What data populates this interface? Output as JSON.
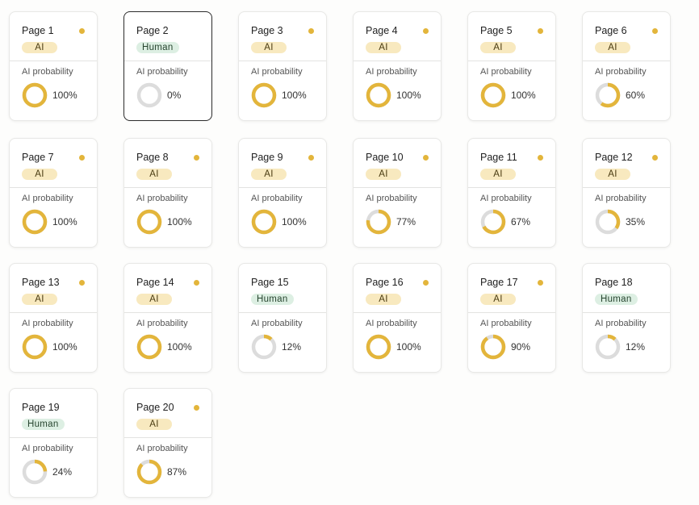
{
  "probability_label": "AI probability",
  "colors": {
    "ai_accent": "#e3b53b",
    "track": "#dcdcdc",
    "ai_badge_bg": "#f8e9bf",
    "human_badge_bg": "#ddefe3"
  },
  "pages": [
    {
      "label": "Page 1",
      "badge": "AI",
      "type": "ai",
      "probability": 100,
      "probability_text": "100%",
      "selected": false
    },
    {
      "label": "Page 2",
      "badge": "Human",
      "type": "human",
      "probability": 0,
      "probability_text": "0%",
      "selected": true
    },
    {
      "label": "Page 3",
      "badge": "AI",
      "type": "ai",
      "probability": 100,
      "probability_text": "100%",
      "selected": false
    },
    {
      "label": "Page 4",
      "badge": "AI",
      "type": "ai",
      "probability": 100,
      "probability_text": "100%",
      "selected": false
    },
    {
      "label": "Page 5",
      "badge": "AI",
      "type": "ai",
      "probability": 100,
      "probability_text": "100%",
      "selected": false
    },
    {
      "label": "Page 6",
      "badge": "AI",
      "type": "ai",
      "probability": 60,
      "probability_text": "60%",
      "selected": false
    },
    {
      "label": "Page 7",
      "badge": "AI",
      "type": "ai",
      "probability": 100,
      "probability_text": "100%",
      "selected": false
    },
    {
      "label": "Page 8",
      "badge": "AI",
      "type": "ai",
      "probability": 100,
      "probability_text": "100%",
      "selected": false
    },
    {
      "label": "Page 9",
      "badge": "AI",
      "type": "ai",
      "probability": 100,
      "probability_text": "100%",
      "selected": false
    },
    {
      "label": "Page 10",
      "badge": "AI",
      "type": "ai",
      "probability": 77,
      "probability_text": "77%",
      "selected": false
    },
    {
      "label": "Page 11",
      "badge": "AI",
      "type": "ai",
      "probability": 67,
      "probability_text": "67%",
      "selected": false
    },
    {
      "label": "Page 12",
      "badge": "AI",
      "type": "ai",
      "probability": 35,
      "probability_text": "35%",
      "selected": false
    },
    {
      "label": "Page 13",
      "badge": "AI",
      "type": "ai",
      "probability": 100,
      "probability_text": "100%",
      "selected": false
    },
    {
      "label": "Page 14",
      "badge": "AI",
      "type": "ai",
      "probability": 100,
      "probability_text": "100%",
      "selected": false
    },
    {
      "label": "Page 15",
      "badge": "Human",
      "type": "human",
      "probability": 12,
      "probability_text": "12%",
      "selected": false
    },
    {
      "label": "Page 16",
      "badge": "AI",
      "type": "ai",
      "probability": 100,
      "probability_text": "100%",
      "selected": false
    },
    {
      "label": "Page 17",
      "badge": "AI",
      "type": "ai",
      "probability": 90,
      "probability_text": "90%",
      "selected": false
    },
    {
      "label": "Page 18",
      "badge": "Human",
      "type": "human",
      "probability": 12,
      "probability_text": "12%",
      "selected": false
    },
    {
      "label": "Page 19",
      "badge": "Human",
      "type": "human",
      "probability": 24,
      "probability_text": "24%",
      "selected": false
    },
    {
      "label": "Page 20",
      "badge": "AI",
      "type": "ai",
      "probability": 87,
      "probability_text": "87%",
      "selected": false
    }
  ]
}
